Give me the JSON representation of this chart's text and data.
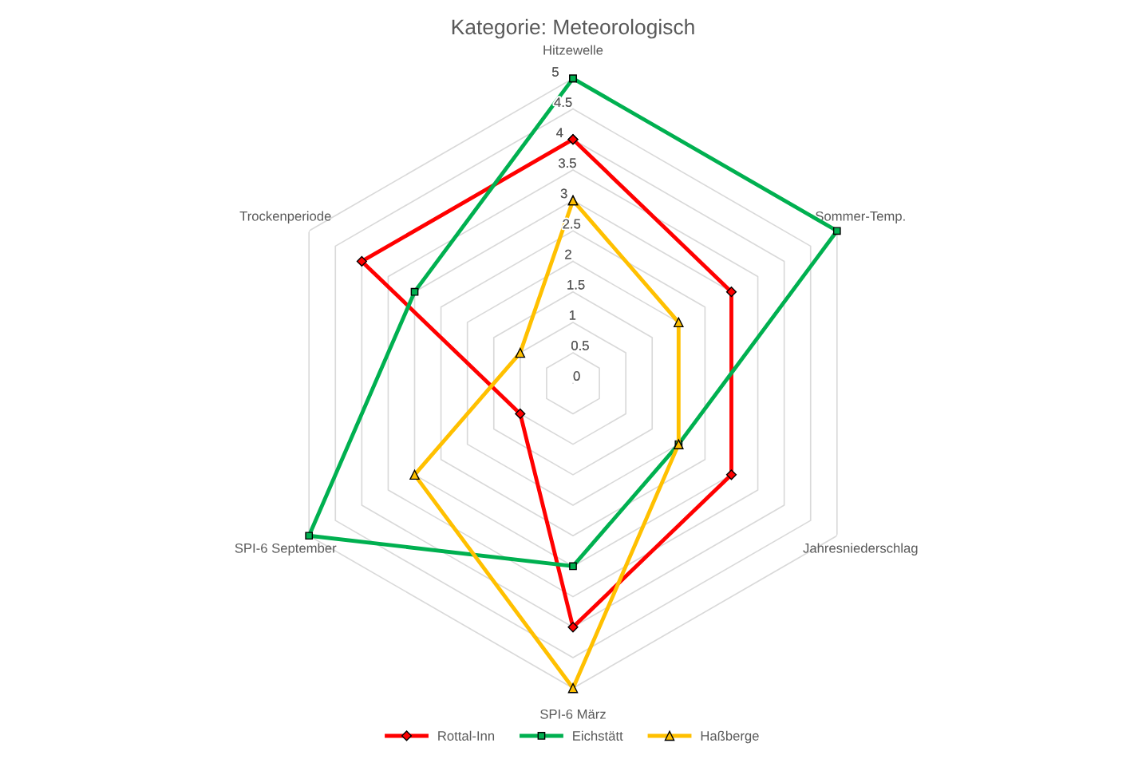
{
  "chart_data": {
    "type": "radar",
    "title": "Kategorie: Meteorologisch",
    "categories": [
      "Hitzewelle",
      "Sommer-Temp.",
      "Jahresniederschlag",
      "SPI-6 März",
      "SPI-6 September",
      "Trockenperiode"
    ],
    "series": [
      {
        "name": "Rottal-Inn",
        "color": "#ff0000",
        "marker": "diamond",
        "values": [
          4,
          3,
          3,
          4,
          1,
          4
        ]
      },
      {
        "name": "Eichstätt",
        "color": "#00b050",
        "marker": "square",
        "values": [
          5,
          5,
          2,
          3,
          5,
          3
        ]
      },
      {
        "name": "Haßberge",
        "color": "#ffc000",
        "marker": "triangle",
        "values": [
          3,
          2,
          2,
          5,
          3,
          1
        ]
      }
    ],
    "ylim": [
      0,
      5
    ],
    "yticks": [
      0,
      0.5,
      1,
      1.5,
      2,
      2.5,
      3,
      3.5,
      4,
      4.5,
      5
    ],
    "grid": true,
    "legend": "bottom"
  }
}
